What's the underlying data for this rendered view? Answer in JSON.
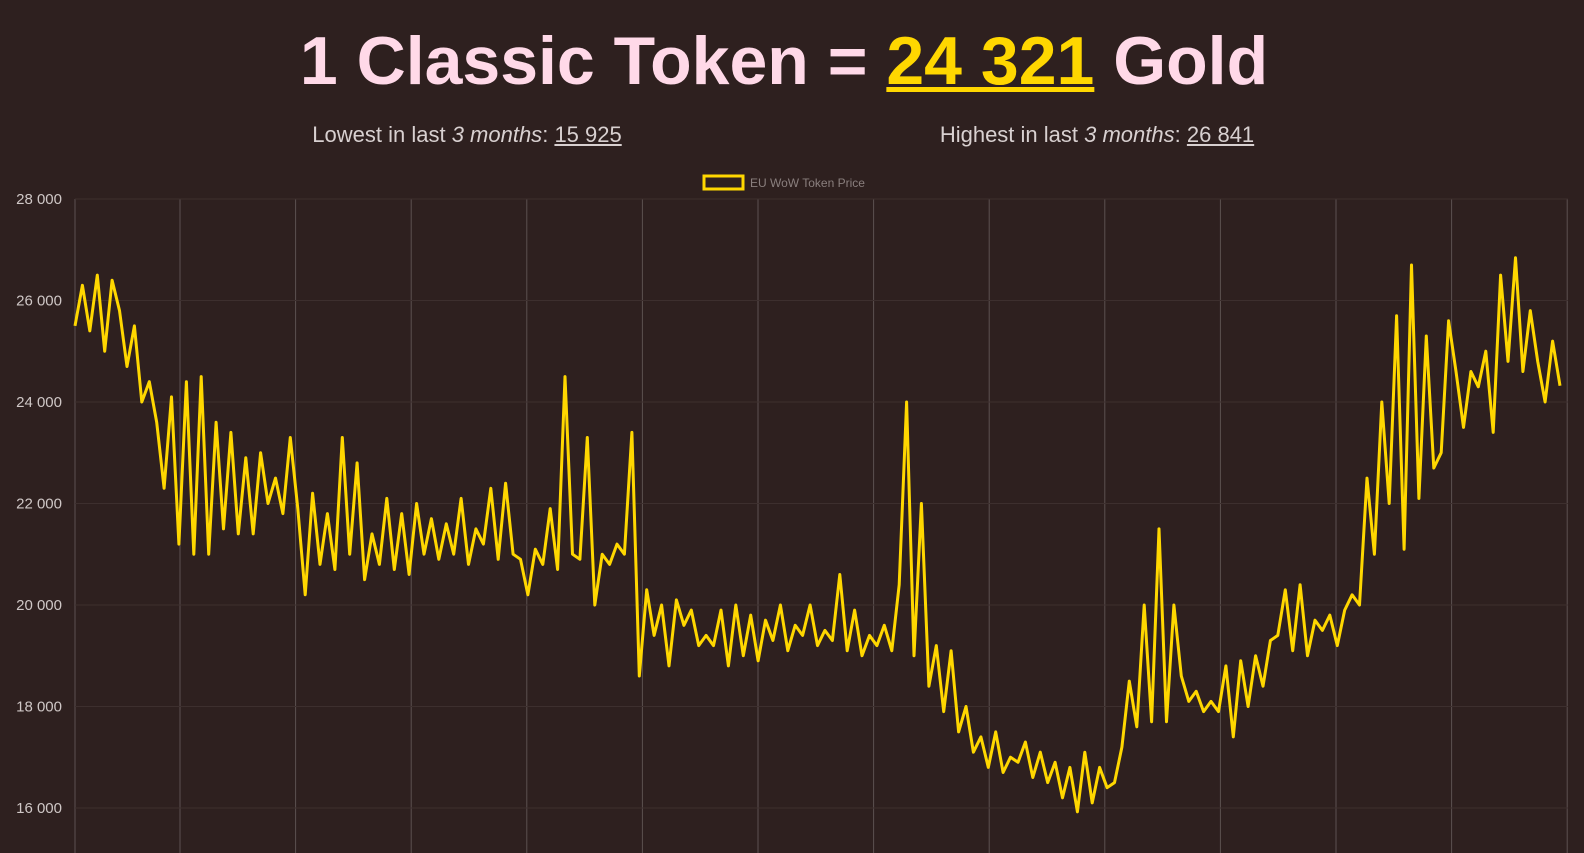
{
  "header": {
    "title_prefix": "1 Classic Token =",
    "price": "24 321",
    "title_suffix": "Gold",
    "lowest_label": "Lowest in last",
    "lowest_period": "3 months",
    "lowest_separator": ":",
    "lowest": "15 925",
    "highest_label": "Highest in last",
    "highest_period": "3 months",
    "highest_separator": ":",
    "highest": "26 841"
  },
  "chart_data": {
    "type": "line",
    "series": [
      {
        "name": "EU WoW Token Price",
        "color": "#ffd700",
        "values": [
          25500,
          26300,
          25400,
          26500,
          25000,
          26400,
          25800,
          24700,
          25500,
          24000,
          24400,
          23600,
          22300,
          24100,
          21200,
          24400,
          21000,
          24500,
          21000,
          23600,
          21500,
          23400,
          21400,
          22900,
          21400,
          23000,
          22000,
          22500,
          21800,
          23300,
          21900,
          20200,
          22200,
          20800,
          21800,
          20700,
          23300,
          21000,
          22800,
          20500,
          21400,
          20800,
          22100,
          20700,
          21800,
          20600,
          22000,
          21000,
          21700,
          20900,
          21600,
          21000,
          22100,
          20800,
          21500,
          21200,
          22300,
          20900,
          22400,
          21000,
          20900,
          20200,
          21100,
          20800,
          21900,
          20700,
          24500,
          21000,
          20900,
          23300,
          20000,
          21000,
          20800,
          21200,
          21000,
          23400,
          18600,
          20300,
          19400,
          20000,
          18800,
          20100,
          19600,
          19900,
          19200,
          19400,
          19200,
          19900,
          18800,
          20000,
          19000,
          19800,
          18900,
          19700,
          19300,
          20000,
          19100,
          19600,
          19400,
          20000,
          19200,
          19500,
          19300,
          20600,
          19100,
          19900,
          19000,
          19400,
          19200,
          19600,
          19100,
          20400,
          24000,
          19000,
          22000,
          18400,
          19200,
          17900,
          19100,
          17500,
          18000,
          17100,
          17400,
          16800,
          17500,
          16700,
          17000,
          16900,
          17300,
          16600,
          17100,
          16500,
          16900,
          16200,
          16800,
          15925,
          17100,
          16100,
          16800,
          16400,
          16500,
          17200,
          18500,
          17600,
          20000,
          17700,
          21500,
          17700,
          20000,
          18600,
          18100,
          18300,
          17900,
          18100,
          17900,
          18800,
          17400,
          18900,
          18000,
          19000,
          18400,
          19300,
          19400,
          20300,
          19100,
          20400,
          19000,
          19700,
          19500,
          19800,
          19200,
          19900,
          20200,
          20000,
          22500,
          21000,
          24000,
          22000,
          25700,
          21100,
          26700,
          22100,
          25300,
          22700,
          23000,
          25600,
          24600,
          23500,
          24600,
          24300,
          25000,
          23400,
          26500,
          24800,
          26841,
          24600,
          25800,
          24800,
          24000,
          25200,
          24321
        ]
      }
    ],
    "ylim": [
      15300,
      28000
    ],
    "yticks": [
      {
        "value": 16000,
        "label": "16 000"
      },
      {
        "value": 18000,
        "label": "18 000"
      },
      {
        "value": 20000,
        "label": "20 000"
      },
      {
        "value": 22000,
        "label": "22 000"
      },
      {
        "value": 24000,
        "label": "24 000"
      },
      {
        "value": 26000,
        "label": "26 000"
      },
      {
        "value": 28000,
        "label": "28 000"
      }
    ],
    "grid": true,
    "legend": "top"
  }
}
